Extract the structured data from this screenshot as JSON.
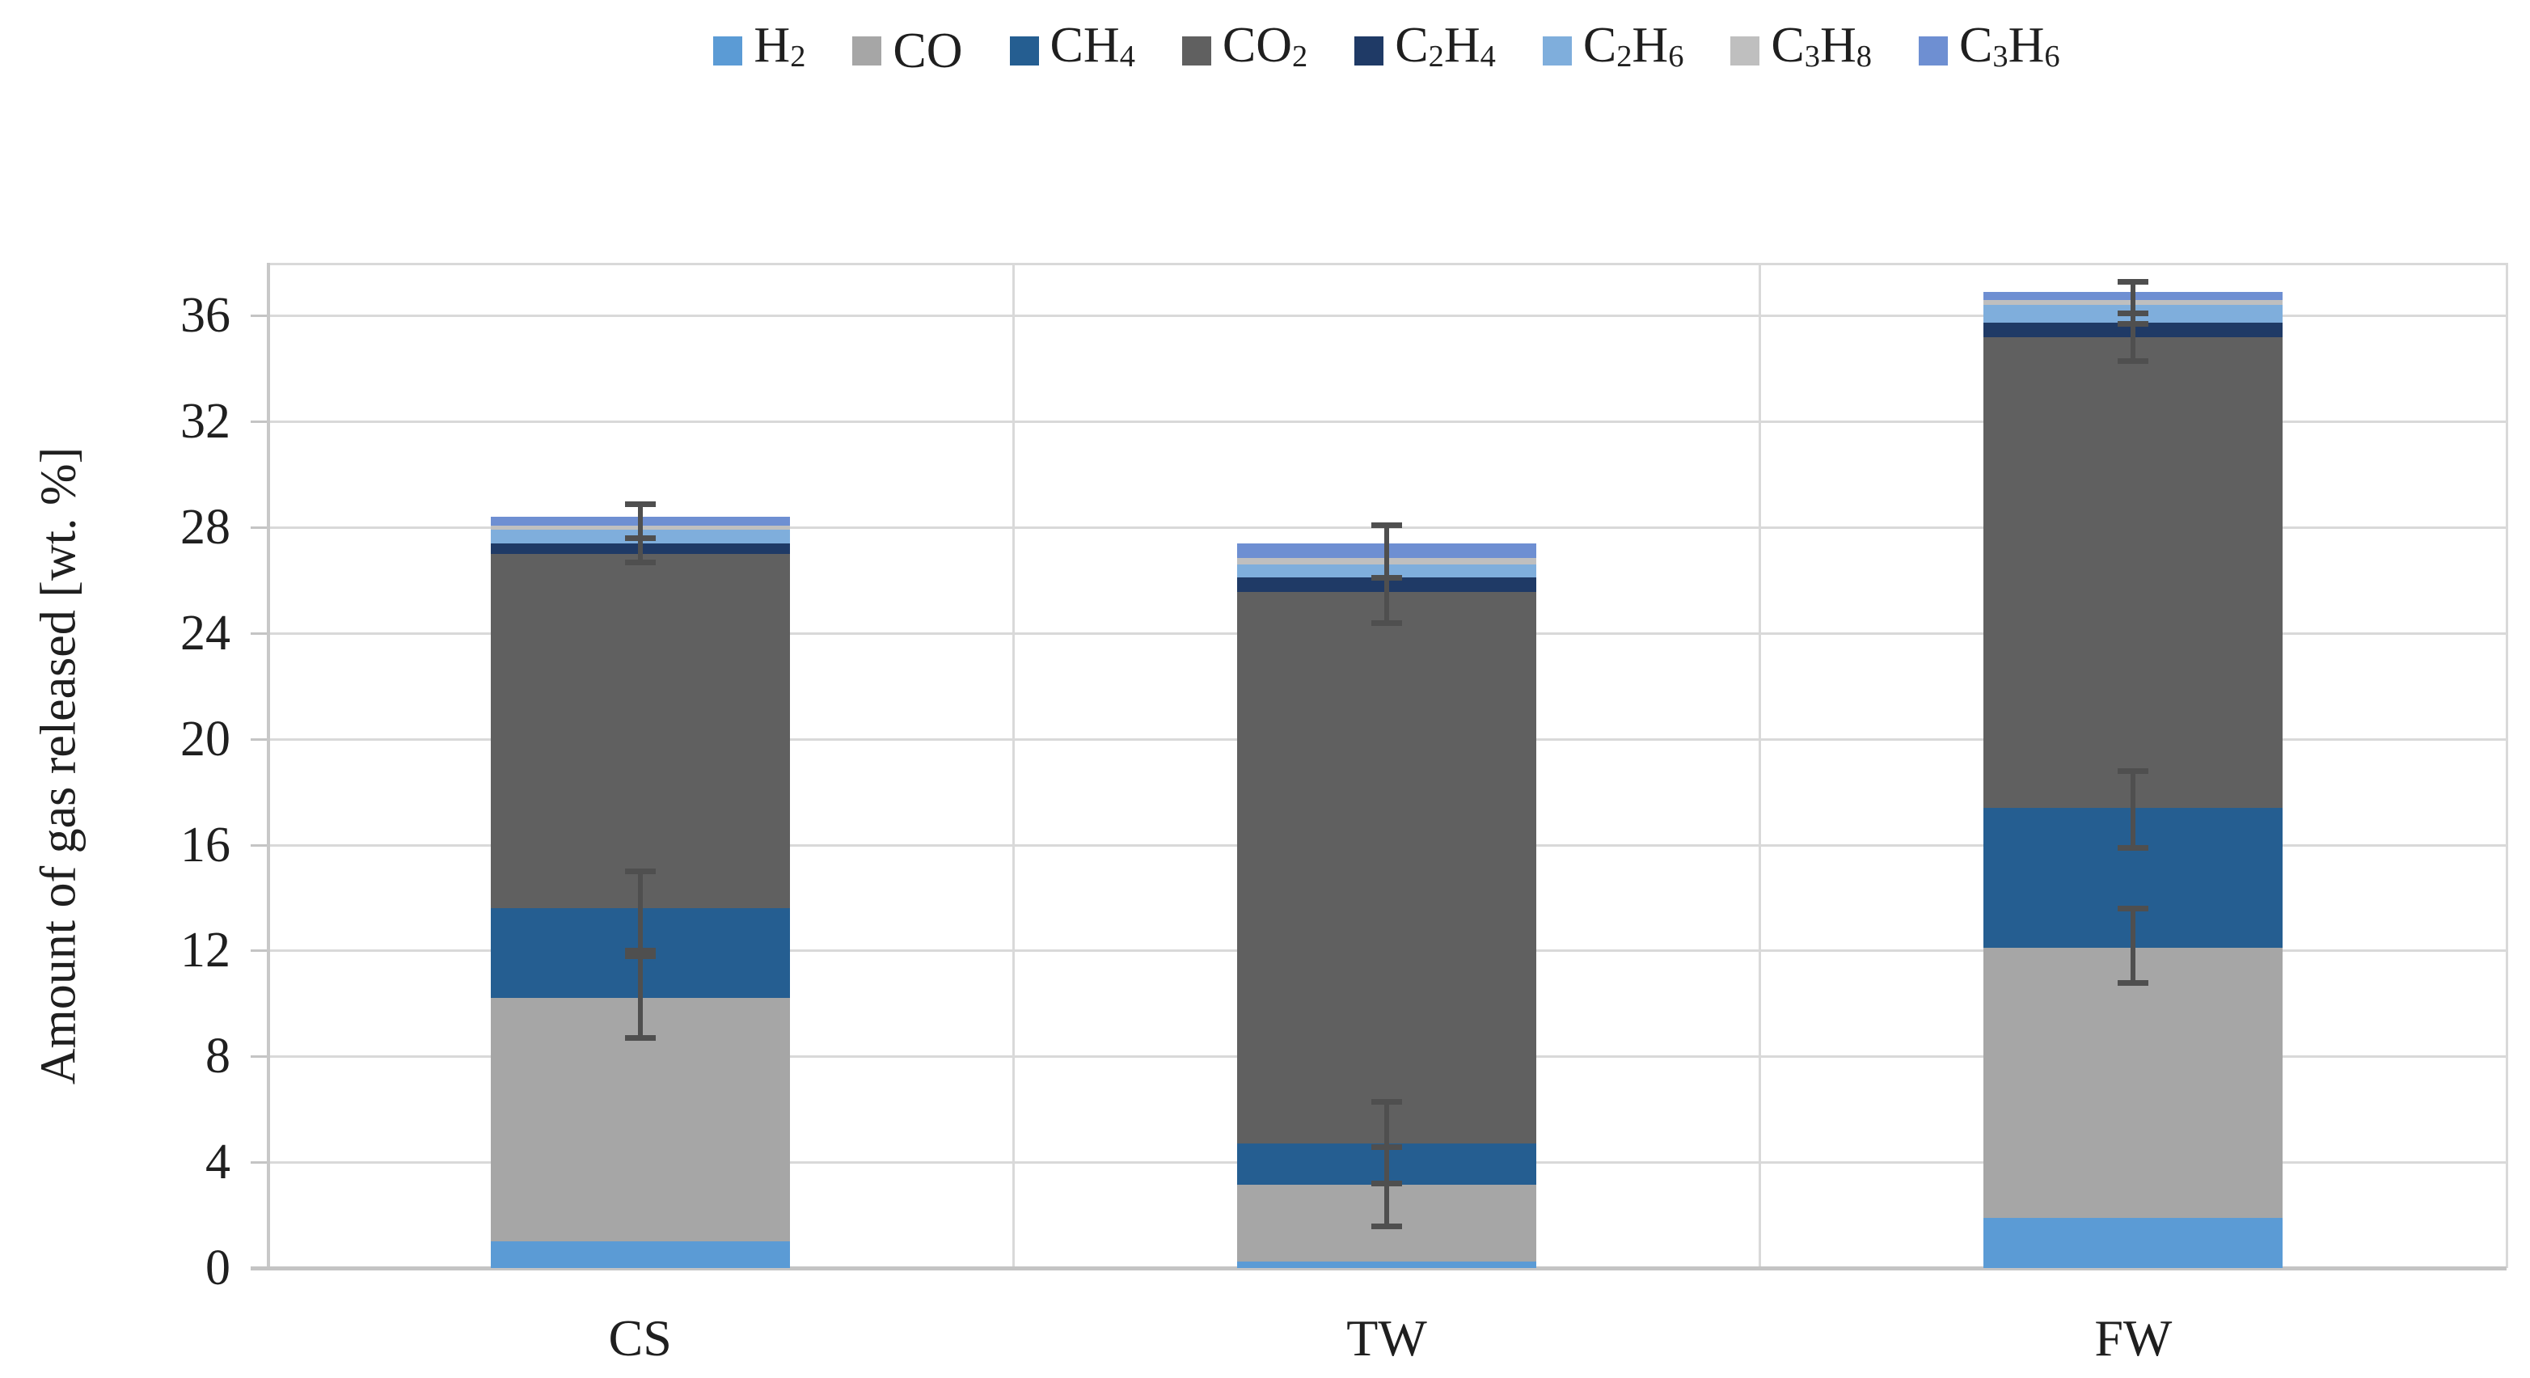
{
  "chart_data": {
    "type": "stacked-bar",
    "title": "",
    "ylabel": "Amount of gas released [wt. %]",
    "xlabel": "",
    "ylim": [
      0,
      38
    ],
    "yticks": [
      0,
      4,
      8,
      12,
      16,
      20,
      24,
      28,
      32,
      36
    ],
    "grid": "horizontal-and-category-separators",
    "legend_position": "top-center",
    "categories": [
      "CS",
      "TW",
      "FW"
    ],
    "series": [
      {
        "name": "H2",
        "color": "#5B9BD5",
        "values": [
          1.0,
          0.25,
          1.9
        ]
      },
      {
        "name": "CO",
        "color": "#A6A6A6",
        "values": [
          9.2,
          2.9,
          10.2
        ]
      },
      {
        "name": "CH4",
        "color": "#255E91",
        "values": [
          3.4,
          1.55,
          5.3
        ]
      },
      {
        "name": "CO2",
        "color": "#606060",
        "values": [
          13.4,
          20.85,
          17.8
        ]
      },
      {
        "name": "C2H4",
        "color": "#1F3A66",
        "values": [
          0.4,
          0.55,
          0.55
        ]
      },
      {
        "name": "C2H6",
        "color": "#7FAEDC",
        "values": [
          0.5,
          0.5,
          0.65
        ]
      },
      {
        "name": "C3H8",
        "color": "#BFBFBF",
        "values": [
          0.15,
          0.25,
          0.2
        ]
      },
      {
        "name": "C3H6",
        "color": "#6E8FD2",
        "values": [
          0.35,
          0.55,
          0.3
        ]
      }
    ],
    "stack_totals": [
      28.4,
      27.4,
      36.9
    ],
    "error_bars": [
      {
        "category": "CS",
        "whiskers": [
          {
            "at": "CO-top",
            "lo": 8.7,
            "hi": 11.8
          },
          {
            "at": "CH4-top",
            "lo": 12.0,
            "hi": 15.0
          },
          {
            "at": "CO2-top",
            "lo": 26.7,
            "hi": 27.6
          },
          {
            "at": "bar-top",
            "lo": 27.6,
            "hi": 28.9
          }
        ]
      },
      {
        "category": "TW",
        "whiskers": [
          {
            "at": "CO-top",
            "lo": 1.6,
            "hi": 4.6
          },
          {
            "at": "CH4-top",
            "lo": 3.2,
            "hi": 6.3
          },
          {
            "at": "CO2-top",
            "lo": 24.4,
            "hi": 26.1
          },
          {
            "at": "bar-top",
            "lo": 26.1,
            "hi": 28.1
          }
        ]
      },
      {
        "category": "FW",
        "whiskers": [
          {
            "at": "CO-top",
            "lo": 10.8,
            "hi": 13.6
          },
          {
            "at": "CH4-top",
            "lo": 15.9,
            "hi": 18.8
          },
          {
            "at": "CO2-top",
            "lo": 34.3,
            "hi": 36.1
          },
          {
            "at": "bar-top",
            "lo": 35.7,
            "hi": 37.3
          }
        ]
      }
    ],
    "colors": {
      "gridline": "#D9D9D9",
      "axis_line": "#C4C4C4",
      "error_bar": "#4F4F4F",
      "text": "#1f1f1f",
      "background": "#ffffff"
    }
  },
  "layout_labels": {
    "legend_order": [
      "H2",
      "CO",
      "CH4",
      "CO2",
      "C2H4",
      "C2H6",
      "C3H8",
      "C3H6"
    ]
  }
}
